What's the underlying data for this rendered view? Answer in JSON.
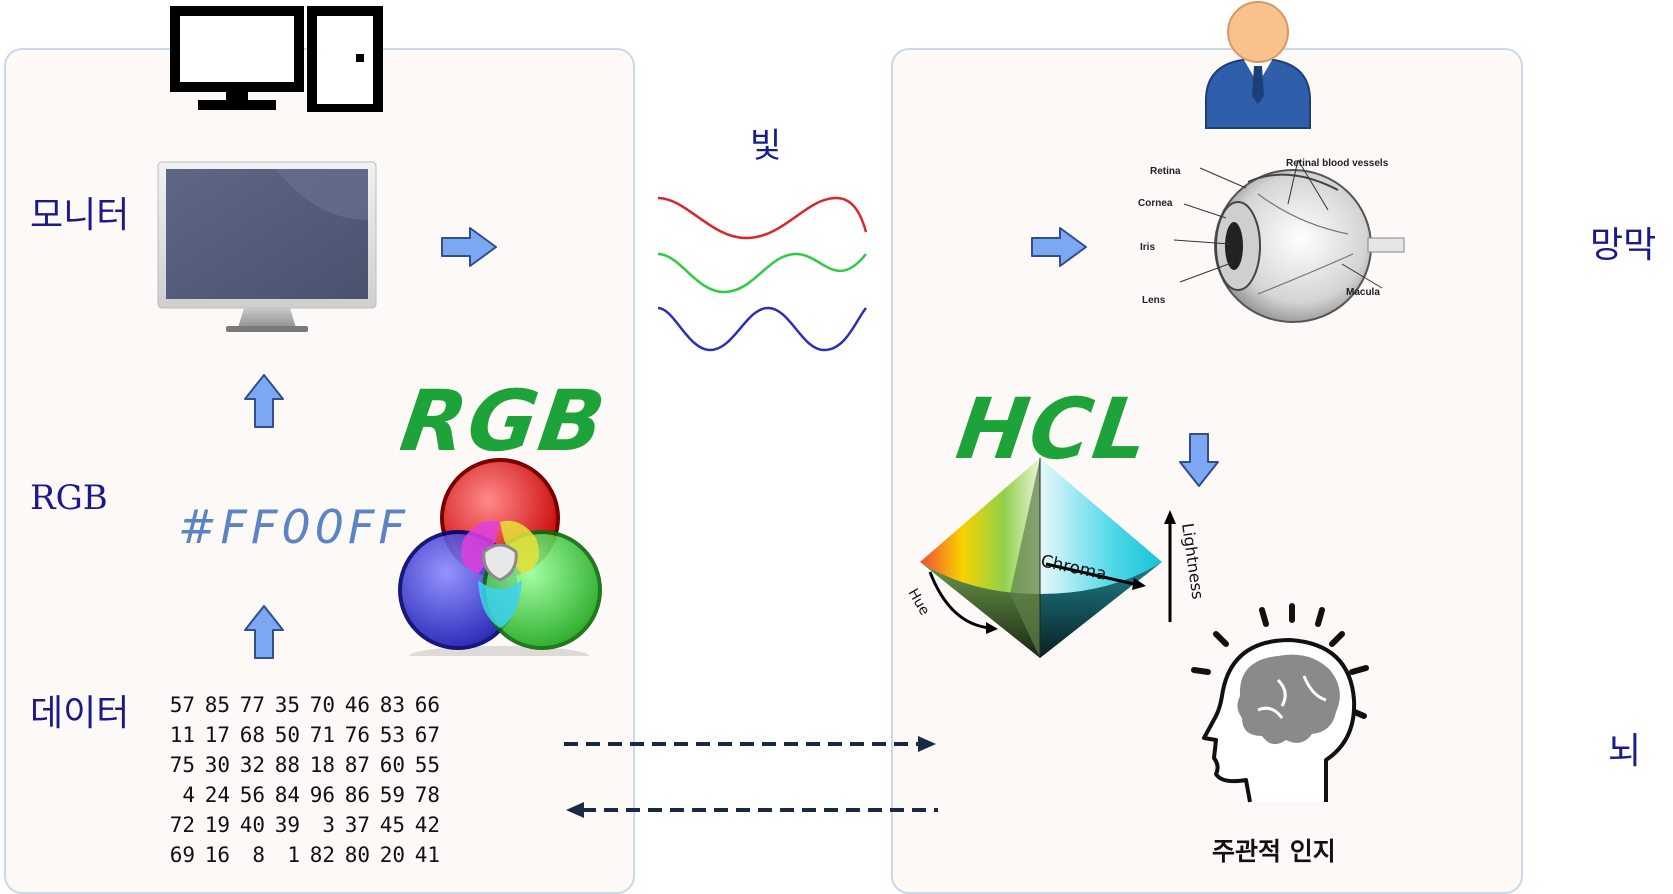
{
  "labels": {
    "monitor": "모니터",
    "rgb": "RGB",
    "data": "데이터",
    "light": "빛",
    "retina": "망막",
    "brain": "뇌",
    "cognition": "주관적 인지"
  },
  "handwritten": {
    "rgb": "RGB",
    "hcl": "HCL",
    "hex": "#FF00FF"
  },
  "hcl_cone": {
    "chroma": "Chroma",
    "lightness": "Lightness",
    "hue": "Hue"
  },
  "eye": {
    "retina": "Retina",
    "retinal_blood_vessels": "Retinal blood vessels",
    "cornea": "Cornea",
    "iris": "Iris",
    "lens": "Lens",
    "macula": "Macula"
  },
  "data_matrix": [
    [
      "57",
      "85",
      "77",
      "35",
      "70",
      "46",
      "83",
      "66"
    ],
    [
      "11",
      "17",
      "68",
      "50",
      "71",
      "76",
      "53",
      "67"
    ],
    [
      "75",
      "30",
      "32",
      "88",
      "18",
      "87",
      "60",
      "55"
    ],
    [
      "4",
      "24",
      "56",
      "84",
      "96",
      "86",
      "59",
      "78"
    ],
    [
      "72",
      "19",
      "40",
      "39",
      "3",
      "37",
      "45",
      "42"
    ],
    [
      "69",
      "16",
      "8",
      "1",
      "82",
      "80",
      "20",
      "41"
    ]
  ],
  "colors": {
    "label_navy": "#1a1a8c",
    "handwritten_green": "#1da33a",
    "hex_blue": "#5a84c4",
    "arrow_fill": "#7da7f0",
    "dashed_arrow": "#1b2a44",
    "wave_red": "#d9262b",
    "wave_green": "#2ecc40",
    "wave_blue": "#2a2fb8"
  },
  "icons": {
    "computer": "computer-icon",
    "user": "user-icon",
    "monitor": "monitor-icon",
    "rgb_circles": "rgb-venn-icon",
    "eye": "eye-anatomy-icon",
    "hcl_cone": "hcl-cone-icon",
    "brain": "brain-head-icon"
  }
}
